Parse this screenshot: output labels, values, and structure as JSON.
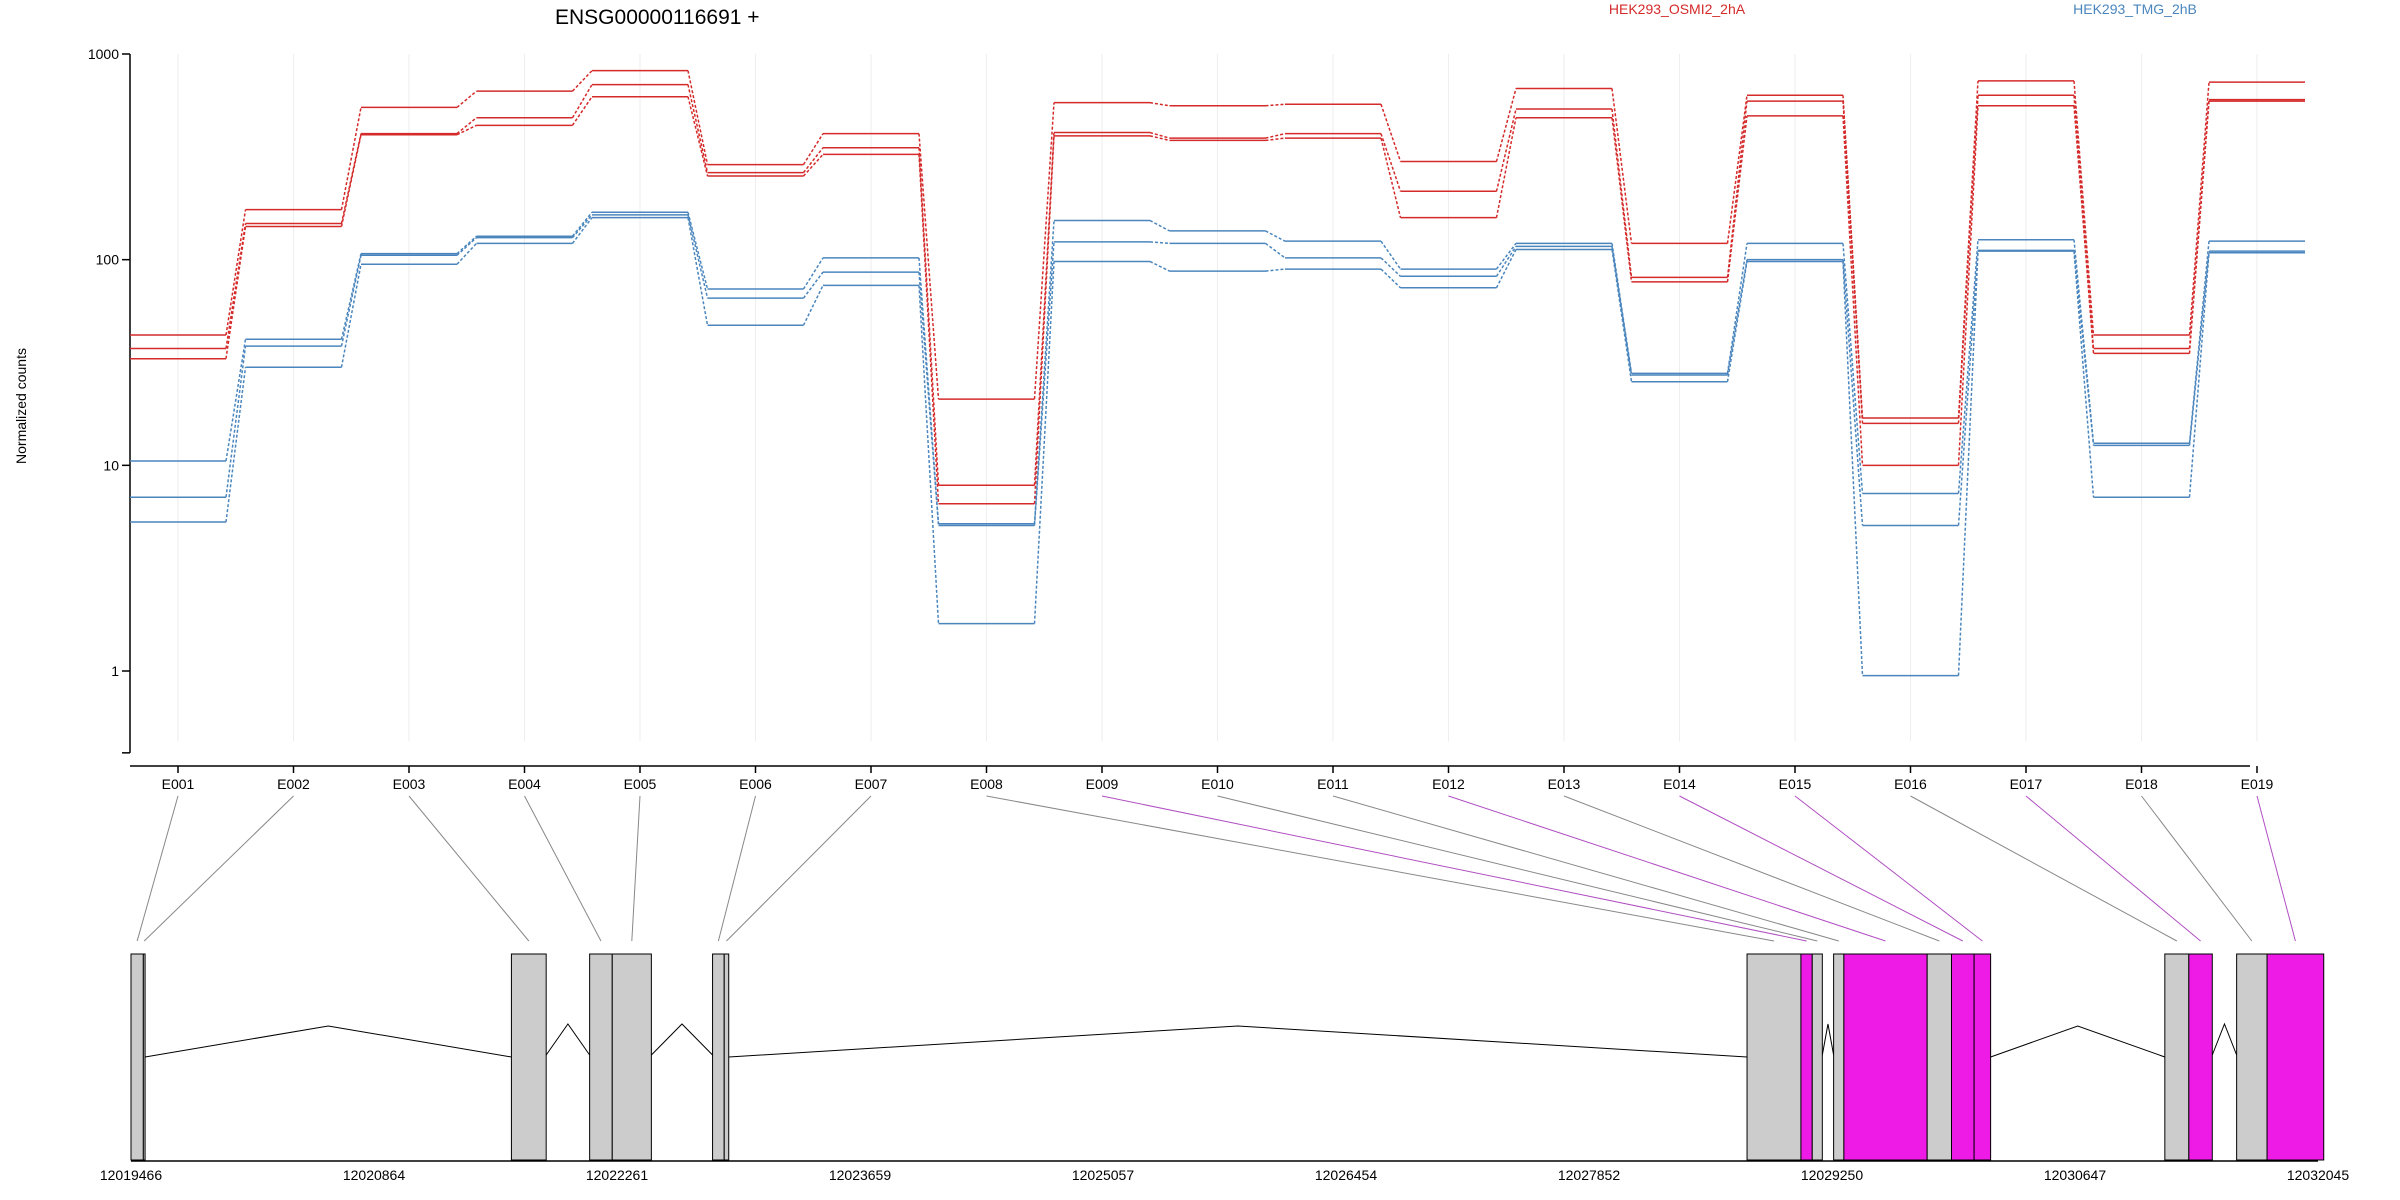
{
  "chart_data": {
    "type": "line",
    "title": "ENSG00000116691 +",
    "ylabel": "Normalized counts",
    "xlabel": "",
    "yscale": "log",
    "ylim": [
      0.4,
      1000
    ],
    "yticks": [
      "1000",
      "100",
      "10",
      "1"
    ],
    "grid": "vertical lines at exon positions",
    "legend_placement": "top-right",
    "colors": {
      "HEK293_OSMI2_2hA": "#d42a2a",
      "HEK293_TMG_2hB": "#4a86bd",
      "exon": "#cccccc",
      "highlight": "#ee1be6",
      "line": "#000000"
    },
    "categories": [
      "E001",
      "E002",
      "E003",
      "E004",
      "E005",
      "E006",
      "E007",
      "E008",
      "E009",
      "E010",
      "E011",
      "E012",
      "E013",
      "E014",
      "E015",
      "E016",
      "E017",
      "E018",
      "E019"
    ],
    "series": [
      {
        "name": "HEK293_OSMI2_2hA",
        "values": [
          43,
          175,
          550,
          660,
          830,
          290,
          410,
          21,
          580,
          560,
          570,
          300,
          680,
          120,
          630,
          17,
          740,
          43,
          730
        ]
      },
      {
        "name": "HEK293_OSMI2_2hA",
        "values": [
          37,
          150,
          410,
          490,
          710,
          265,
          350,
          8,
          415,
          390,
          410,
          215,
          540,
          82,
          590,
          16,
          630,
          37,
          600
        ]
      },
      {
        "name": "HEK293_OSMI2_2hA",
        "values": [
          33,
          145,
          405,
          450,
          620,
          255,
          325,
          6.5,
          400,
          380,
          390,
          160,
          490,
          78,
          500,
          10,
          560,
          35,
          590
        ]
      },
      {
        "name": "HEK293_TMG_2hB",
        "values": [
          10.5,
          41,
          107,
          130,
          170,
          72,
          102,
          5.2,
          155,
          138,
          123,
          90,
          120,
          28,
          120,
          7.3,
          125,
          12.8,
          123
        ]
      },
      {
        "name": "HEK293_TMG_2hB",
        "values": [
          7,
          38,
          105,
          128,
          165,
          65,
          87,
          5.1,
          122,
          120,
          102,
          83,
          116,
          27.5,
          100,
          5.1,
          111,
          12.5,
          110
        ]
      },
      {
        "name": "HEK293_TMG_2hB",
        "values": [
          5.3,
          30,
          95,
          120,
          160,
          48,
          75,
          1.7,
          98,
          88,
          90,
          73,
          112,
          25.5,
          98,
          0.95,
          110,
          7,
          108
        ]
      }
    ],
    "gene_model": {
      "coordinate_ticks": [
        "12019466",
        "12020864",
        "12022261",
        "12023659",
        "12025057",
        "12026454",
        "12027852",
        "12029250",
        "12030647",
        "12032045"
      ],
      "coordinate_range": [
        12019466,
        12032045
      ],
      "exons": [
        {
          "id": "E001",
          "start": 12019466,
          "end": 12019537,
          "highlight": false
        },
        {
          "id": "E002",
          "start": 12019537,
          "end": 12019547,
          "highlight": false
        },
        {
          "id": "E003",
          "start": 12021654,
          "end": 12021854,
          "highlight": false
        },
        {
          "id": "E004",
          "start": 12022104,
          "end": 12022234,
          "highlight": false
        },
        {
          "id": "E005",
          "start": 12022234,
          "end": 12022459,
          "highlight": false
        },
        {
          "id": "E006",
          "start": 12022811,
          "end": 12022878,
          "highlight": false
        },
        {
          "id": "E007",
          "start": 12022878,
          "end": 12022904,
          "highlight": false
        },
        {
          "id": "E008",
          "start": 12028761,
          "end": 12029071,
          "highlight": false
        },
        {
          "id": "E009",
          "start": 12029071,
          "end": 12029136,
          "highlight": true
        },
        {
          "id": "E010",
          "start": 12029136,
          "end": 12029194,
          "highlight": false
        },
        {
          "id": "E011",
          "start": 12029259,
          "end": 12029318,
          "highlight": false
        },
        {
          "id": "E012",
          "start": 12029318,
          "end": 12029797,
          "highlight": true
        },
        {
          "id": "E013",
          "start": 12029797,
          "end": 12029937,
          "highlight": false
        },
        {
          "id": "E014",
          "start": 12029937,
          "end": 12030067,
          "highlight": true
        },
        {
          "id": "E015",
          "start": 12030067,
          "end": 12030162,
          "highlight": true
        },
        {
          "id": "E016",
          "start": 12031164,
          "end": 12031302,
          "highlight": false
        },
        {
          "id": "E017",
          "start": 12031302,
          "end": 12031437,
          "highlight": true
        },
        {
          "id": "E018",
          "start": 12031577,
          "end": 12031752,
          "highlight": false
        },
        {
          "id": "E019",
          "start": 12031752,
          "end": 12032078,
          "highlight": true
        }
      ],
      "introns": [
        [
          12019547,
          12021654
        ],
        [
          12021854,
          12022104
        ],
        [
          12022459,
          12022811
        ],
        [
          12022904,
          12028761
        ],
        [
          12029194,
          12029259
        ],
        [
          12030162,
          12031164
        ],
        [
          12031437,
          12031577
        ]
      ]
    }
  }
}
